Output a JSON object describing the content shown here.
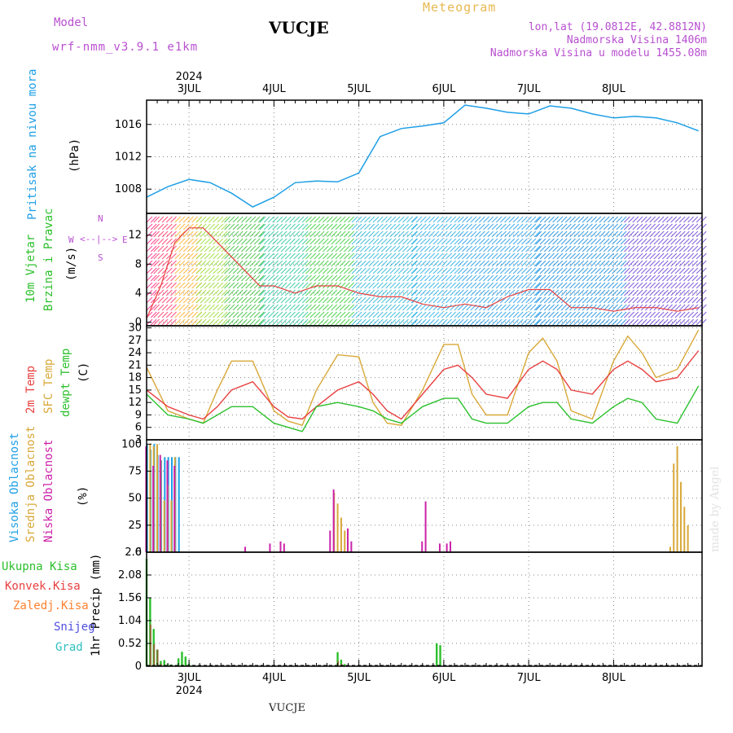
{
  "header": {
    "model_label": "Model",
    "model_name": "wrf-nmm_v3.9.1 e1km",
    "station": "VUCJE",
    "meteogram": "Meteogram",
    "lonlat": "lon,lat (19.0812E, 42.8812N)",
    "elevation": "Nadmorska Visina 1406m",
    "model_elevation": "Nadmorska Visina u modelu 1455.08m"
  },
  "footer": {
    "station": "VUCJE",
    "credit": "made by Angel"
  },
  "colors": {
    "pressure": "#1e9fe6",
    "temp2m": "#e84040",
    "sfc": "#d8a838",
    "dew": "#2cc02c",
    "high": "#1e9fe6",
    "mid": "#d8a838",
    "low": "#cc22aa",
    "precip": "#2cc02c",
    "conv": "#e84040",
    "frz": "#ff8030",
    "snow": "#5050e0",
    "grad": "#30c0c0"
  },
  "time_axis": {
    "year": "2024",
    "days": [
      "3JUL",
      "4JUL",
      "5JUL",
      "6JUL",
      "7JUL",
      "8JUL"
    ]
  },
  "panels": {
    "pressure": {
      "ylabel1": "Pritisak na nivou mora",
      "ylabel2": "(hPa)",
      "ticks": [
        "1008",
        "1012",
        "1016"
      ]
    },
    "wind": {
      "ylabel1": "10m Vjetar",
      "ylabel2": "Brzina i Pravac",
      "ylabel3": "(m/s)",
      "ticks": [
        "0",
        "4",
        "8",
        "12"
      ],
      "rose": {
        "n": "N",
        "s": "S",
        "w": "W",
        "e": "E"
      }
    },
    "temp": {
      "ylabel1": "2m Temp",
      "ylabel2": "SFC Temp",
      "ylabel3": "dewpt Temp",
      "ylabel4": "(C)",
      "ticks": [
        "3",
        "6",
        "9",
        "12",
        "15",
        "18",
        "21",
        "24",
        "27",
        "30"
      ]
    },
    "cloud": {
      "ylabel1": "Visoka Oblacnost",
      "ylabel2": "Srednja Oblacnost",
      "ylabel3": "Niska Oblacnost",
      "ylabel4": "(%)",
      "ticks": [
        "0",
        "25",
        "50",
        "75",
        "100"
      ]
    },
    "precip": {
      "ylabel": "1hr Precip (mm)",
      "ticks": [
        "0",
        "0.52",
        "1.04",
        "1.56",
        "2.08",
        "2.6"
      ],
      "legend": [
        "Ukupna Kisa",
        "Konvek.Kisa",
        "Zaledj.Kisa",
        "Snijeg",
        "Grad"
      ]
    }
  },
  "chart_data": [
    {
      "type": "line",
      "title": "",
      "ylabel": "Pritisak na nivou mora (hPa)",
      "ylim": [
        1005,
        1020
      ],
      "x_unit": "hours from 2 JUL 12UTC",
      "series": [
        {
          "name": "Pritisak na nivou mora",
          "x": [
            0,
            6,
            12,
            18,
            24,
            30,
            36,
            42,
            48,
            54,
            60,
            66,
            72,
            78,
            84,
            90,
            96,
            102,
            108,
            114,
            120,
            126,
            132,
            138,
            144,
            150,
            156
          ],
          "values": [
            1007.0,
            1008.3,
            1009.2,
            1008.8,
            1007.5,
            1005.8,
            1007.0,
            1008.8,
            1009.0,
            1008.9,
            1010.0,
            1014.5,
            1015.5,
            1015.8,
            1016.2,
            1018.4,
            1018.0,
            1017.5,
            1017.3,
            1018.3,
            1018.0,
            1017.3,
            1016.8,
            1017.0,
            1016.8,
            1016.2,
            1015.2
          ]
        }
      ]
    },
    {
      "type": "line",
      "title": "",
      "ylabel": "10m Vjetar Brzina i Pravac (m/s)",
      "ylim": [
        -0.5,
        15
      ],
      "x_unit": "hours from 2 JUL 12UTC",
      "series": [
        {
          "name": "",
          "x": [
            0,
            4,
            8,
            12,
            16,
            20,
            24,
            28,
            32,
            36,
            42,
            48,
            54,
            60,
            66,
            72,
            78,
            84,
            90,
            96,
            102,
            108,
            114,
            120,
            126,
            132,
            138,
            144,
            150,
            156
          ],
          "values": [
            0.5,
            5,
            11,
            13,
            13,
            11,
            9,
            7,
            5,
            5,
            4,
            5,
            5,
            4,
            3.5,
            3.5,
            2.5,
            2.0,
            2.5,
            2,
            3.5,
            4.5,
            4.5,
            2,
            2,
            1.5,
            2,
            2,
            1.5,
            2
          ]
        }
      ]
    },
    {
      "type": "line",
      "title": "",
      "ylabel": "(C)",
      "ylim": [
        3,
        30
      ],
      "x_unit": "hours from 2 JUL 12UTC",
      "series": [
        {
          "name": "2m Temp",
          "x": [
            0,
            6,
            12,
            16,
            20,
            24,
            30,
            36,
            40,
            44,
            48,
            54,
            60,
            64,
            68,
            72,
            78,
            84,
            88,
            92,
            96,
            102,
            108,
            112,
            116,
            120,
            126,
            132,
            136,
            140,
            144,
            150,
            156
          ],
          "values": [
            15,
            11,
            9,
            8,
            11,
            15,
            17,
            11,
            8.5,
            8,
            11,
            15,
            17,
            14,
            10,
            8,
            14,
            20,
            21,
            18,
            14,
            13,
            20,
            22,
            20,
            15,
            14,
            20,
            22,
            20,
            17,
            18,
            24.5
          ]
        },
        {
          "name": "SFC Temp",
          "x": [
            0,
            6,
            12,
            16,
            20,
            24,
            30,
            36,
            40,
            44,
            48,
            54,
            60,
            64,
            68,
            72,
            78,
            84,
            88,
            92,
            96,
            102,
            108,
            112,
            116,
            120,
            126,
            132,
            136,
            140,
            144,
            150,
            156
          ],
          "values": [
            20.5,
            10,
            8,
            7,
            15,
            22,
            22,
            10,
            7.5,
            6.5,
            15,
            23.5,
            23,
            12,
            7,
            6.5,
            15,
            26,
            26,
            14,
            9,
            9,
            24,
            27.5,
            22,
            10,
            8,
            22,
            28,
            24,
            18,
            20,
            29.5
          ]
        },
        {
          "name": "dewpt Temp",
          "x": [
            0,
            6,
            12,
            16,
            20,
            24,
            30,
            36,
            40,
            44,
            48,
            54,
            60,
            64,
            68,
            72,
            78,
            84,
            88,
            92,
            96,
            102,
            108,
            112,
            116,
            120,
            126,
            132,
            136,
            140,
            144,
            150,
            156
          ],
          "values": [
            14,
            9,
            8,
            7,
            9,
            11,
            11,
            7,
            6,
            5,
            11,
            12,
            11,
            10,
            8,
            7,
            11,
            13,
            13,
            8,
            7,
            7,
            11,
            12,
            12,
            8,
            7,
            11,
            13,
            12,
            8,
            7,
            16
          ]
        }
      ]
    },
    {
      "type": "bar",
      "title": "",
      "ylabel": "(%)",
      "ylim": [
        0,
        100
      ],
      "x_unit": "hours from 2 JUL 12UTC",
      "series": [
        {
          "name": "Visoka Oblacnost",
          "x": [
            0,
            1,
            2,
            3,
            4,
            5,
            6,
            7,
            8,
            9
          ],
          "values": [
            100,
            95,
            100,
            90,
            85,
            88,
            88,
            88,
            88,
            88
          ]
        },
        {
          "name": "Srednja Oblacnost",
          "x": [
            1,
            2,
            3,
            4,
            5,
            6,
            7,
            8,
            53,
            54,
            55,
            56,
            148,
            149,
            150,
            151,
            152,
            153
          ],
          "values": [
            100,
            98,
            100,
            85,
            48,
            62,
            48,
            88,
            55,
            45,
            32,
            20,
            5,
            82,
            98,
            65,
            42,
            25
          ]
        },
        {
          "name": "Niska Oblacnost",
          "x": [
            0,
            2,
            4,
            6,
            8,
            28,
            35,
            38,
            39,
            52,
            53,
            57,
            58,
            78,
            79,
            83,
            85,
            86
          ],
          "values": [
            98,
            80,
            90,
            85,
            80,
            5,
            8,
            10,
            8,
            20,
            58,
            22,
            10,
            10,
            47,
            8,
            8,
            10
          ]
        }
      ]
    },
    {
      "type": "bar",
      "title": "",
      "ylabel": "1hr Precip (mm)",
      "ylim": [
        0,
        2.6
      ],
      "x_unit": "hours from 2 JUL 12UTC",
      "series": [
        {
          "name": "Ukupna Kisa",
          "x": [
            0,
            1,
            2,
            3,
            4,
            5,
            6,
            7,
            8,
            9,
            10,
            11,
            12,
            13,
            14,
            54,
            55,
            56,
            82,
            83
          ],
          "values": [
            2.45,
            1.55,
            0.85,
            0.38,
            0.12,
            0.14,
            0.05,
            0.04,
            0.02,
            0.18,
            0.33,
            0.22,
            0.06,
            0.02,
            0.01,
            0.32,
            0.15,
            0.05,
            0.52,
            0.48
          ]
        },
        {
          "name": "Konvek.Kisa",
          "x": [
            1,
            2,
            3,
            4,
            54,
            55
          ],
          "values": [
            0.95,
            0.5,
            0.38,
            0.05,
            0.12,
            0.05
          ]
        },
        {
          "name": "Zaledj.Kisa",
          "x": [],
          "values": []
        },
        {
          "name": "Snijeg",
          "x": [],
          "values": []
        },
        {
          "name": "Grad",
          "x": [],
          "values": []
        }
      ]
    }
  ]
}
